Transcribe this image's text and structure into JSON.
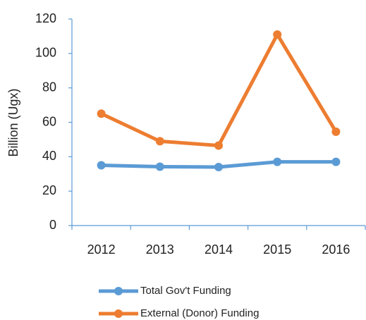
{
  "chart_data": {
    "type": "line",
    "y_label": "Billion (Ugx)",
    "categories": [
      "2012",
      "2013",
      "2014",
      "2015",
      "2016"
    ],
    "series": [
      {
        "name": "Total Gov't Funding",
        "color": "#5b9bd5",
        "values": [
          35,
          34.2,
          34,
          37,
          37
        ]
      },
      {
        "name": "External (Donor) Funding",
        "color": "#ed7d31",
        "values": [
          65,
          49,
          46.5,
          111,
          54.5
        ]
      }
    ],
    "ylim": [
      0,
      120
    ],
    "yticks": [
      0,
      20,
      40,
      60,
      80,
      100,
      120
    ]
  }
}
